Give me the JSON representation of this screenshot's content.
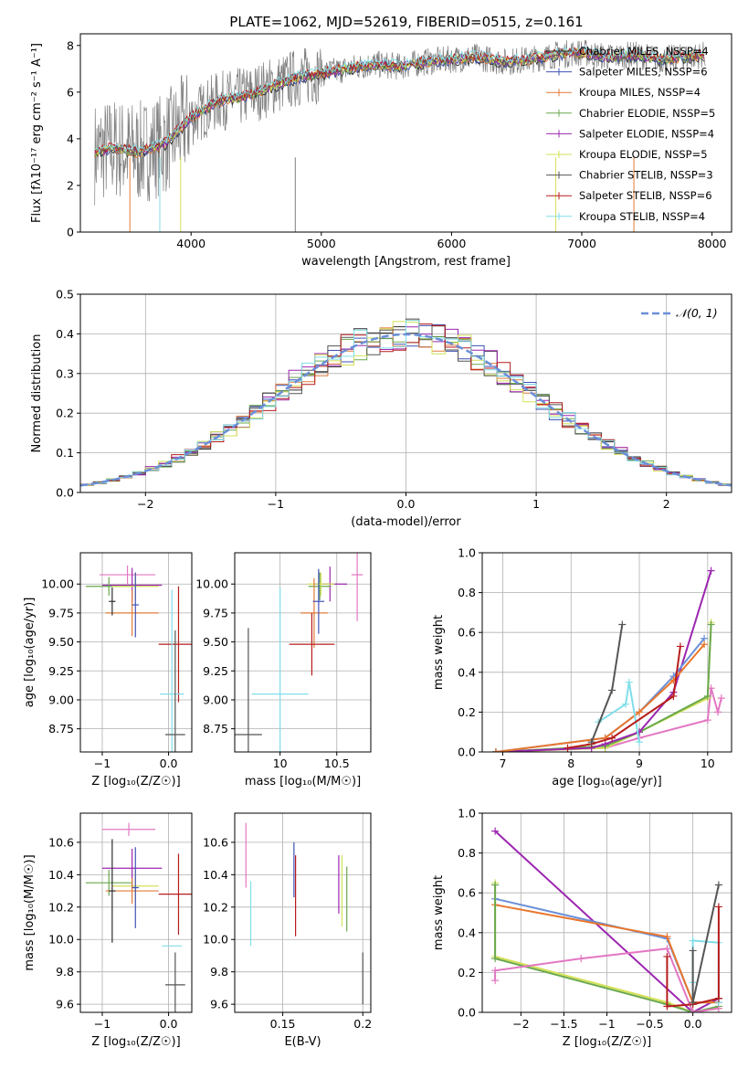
{
  "figure_title": "PLATE=1062, MJD=52619, FIBERID=0515, z=0.161",
  "colors": {
    "c_miles": "#2e2e2e",
    "s_miles": "#3f51b5",
    "k_miles": "#e07b39",
    "c_elodie": "#6aa84f",
    "s_elodie": "#9c27b0",
    "k_elodie": "#d4e157",
    "c_stelib": "#555555",
    "s_stelib": "#b71c1c",
    "k_stelib": "#80deea",
    "pink": "#e377c2",
    "blue": "#6a8fd8",
    "orange": "#e8772e",
    "gray": "#7f7f7f"
  },
  "chart_data": [
    {
      "id": "spectrum",
      "type": "line",
      "xlabel": "wavelength [Angstrom, rest frame]",
      "ylabel": "Flux [fλ10⁻¹⁷ erg cm⁻² s⁻¹ A⁻¹]",
      "xlim": [
        3150,
        8150
      ],
      "ylim": [
        0,
        8.5
      ],
      "xticks": [
        4000,
        5000,
        6000,
        7000,
        8000
      ],
      "yticks": [
        0,
        2,
        4,
        6,
        8
      ],
      "legend_position": "upper-right",
      "series": [
        {
          "name": "Chabrier MILES, NSSP=4",
          "color": "#2e2e2e"
        },
        {
          "name": "Salpeter MILES, NSSP=6",
          "color": "#3f51b5"
        },
        {
          "name": "Kroupa MILES, NSSP=4",
          "color": "#e07b39"
        },
        {
          "name": "Chabrier ELODIE, NSSP=5",
          "color": "#6aa84f"
        },
        {
          "name": "Salpeter ELODIE, NSSP=4",
          "color": "#9c27b0"
        },
        {
          "name": "Kroupa ELODIE, NSSP=5",
          "color": "#d4e157"
        },
        {
          "name": "Chabrier STELIB, NSSP=3",
          "color": "#555555"
        },
        {
          "name": "Salpeter STELIB, NSSP=6",
          "color": "#b71c1c"
        },
        {
          "name": "Kroupa STELIB, NSSP=4",
          "color": "#80deea"
        }
      ],
      "envelope_x": [
        3260,
        3400,
        3600,
        3800,
        4000,
        4200,
        4400,
        4600,
        4800,
        5000,
        5200,
        5400,
        5600,
        5800,
        6000,
        6200,
        6400,
        6600,
        6800,
        7000,
        7200,
        7400,
        7600,
        7800,
        7950
      ],
      "envelope_y": [
        3.4,
        3.6,
        3.4,
        3.8,
        4.9,
        5.6,
        5.8,
        6.2,
        6.6,
        6.8,
        7.0,
        7.2,
        7.1,
        7.3,
        7.4,
        7.5,
        7.3,
        7.4,
        7.6,
        7.7,
        7.5,
        7.6,
        7.4,
        7.5,
        7.6
      ]
    },
    {
      "id": "residuals",
      "type": "histogram",
      "xlabel": "(data-model)/error",
      "ylabel": "Normed distribution",
      "xlim": [
        -2.5,
        2.5
      ],
      "ylim": [
        0,
        0.5
      ],
      "xticks": [
        -2,
        -1,
        0,
        1,
        2
      ],
      "yticks": [
        0.0,
        0.1,
        0.2,
        0.3,
        0.4,
        0.5
      ],
      "legend": [
        "𝒩(0, 1)"
      ],
      "reference_curve": "normal pdf, mean 0, sd 1"
    },
    {
      "id": "z_age",
      "type": "scatter",
      "xlabel": "Z [log₁₀(Z/Z☉)]",
      "ylabel": "age  [log₁₀(age/yr)]",
      "xlim": [
        -1.33,
        0.35
      ],
      "ylim": [
        8.55,
        10.27
      ],
      "xticks": [
        -1,
        0
      ],
      "yticks": [
        8.75,
        9.0,
        9.25,
        9.5,
        9.75,
        10.0
      ],
      "points": [
        {
          "x": -0.62,
          "y": 10.08,
          "xerr": 0.42,
          "yerr": 0.08,
          "color": "#e377c2"
        },
        {
          "x": -0.55,
          "y": 9.99,
          "xerr": 0.45,
          "yerr": 0.15,
          "color": "#9c27b0"
        },
        {
          "x": -0.9,
          "y": 9.98,
          "xerr": 0.35,
          "yerr": 0.08,
          "color": "#6aa84f"
        },
        {
          "x": -0.5,
          "y": 9.98,
          "xerr": 0.35,
          "yerr": 0.12,
          "color": "#d4e157"
        },
        {
          "x": -0.55,
          "y": 9.75,
          "xerr": 0.4,
          "yerr": 0.2,
          "color": "#e07b39"
        },
        {
          "x": -0.85,
          "y": 9.85,
          "xerr": 0.05,
          "yerr": 0.12,
          "color": "#2e2e2e"
        },
        {
          "x": -0.5,
          "y": 9.82,
          "xerr": 0.05,
          "yerr": 0.28,
          "color": "#3f51b5"
        },
        {
          "x": 0.15,
          "y": 9.48,
          "xerr": 0.3,
          "yerr": 0.5,
          "color": "#b71c1c"
        },
        {
          "x": 0.05,
          "y": 9.05,
          "xerr": 0.18,
          "yerr": 0.9,
          "color": "#80deea"
        },
        {
          "x": 0.1,
          "y": 8.7,
          "xerr": 0.15,
          "yerr": 0.9,
          "color": "#555555"
        }
      ]
    },
    {
      "id": "mass_age",
      "type": "scatter",
      "xlabel": "mass [log₁₀(M/M☉)]",
      "ylabel": "",
      "xlim": [
        9.6,
        10.8
      ],
      "ylim": [
        8.55,
        10.27
      ],
      "xticks": [
        10.0,
        10.5
      ],
      "yticks": [
        8.75,
        9.0,
        9.25,
        9.5,
        9.75,
        10.0
      ],
      "points": [
        {
          "x": 10.68,
          "y": 10.08,
          "xerr": 0.05,
          "yerr": 0.4,
          "color": "#e377c2"
        },
        {
          "x": 10.44,
          "y": 10.0,
          "xerr": 0.15,
          "yerr": 0.15,
          "color": "#9c27b0"
        },
        {
          "x": 10.35,
          "y": 9.98,
          "xerr": 0.1,
          "yerr": 0.12,
          "color": "#6aa84f"
        },
        {
          "x": 10.36,
          "y": 10.0,
          "xerr": 0.12,
          "yerr": 0.1,
          "color": "#d4e157"
        },
        {
          "x": 10.3,
          "y": 9.75,
          "xerr": 0.12,
          "yerr": 0.3,
          "color": "#e07b39"
        },
        {
          "x": 10.34,
          "y": 9.85,
          "xerr": 0.05,
          "yerr": 0.28,
          "color": "#3f51b5"
        },
        {
          "x": 10.28,
          "y": 9.48,
          "xerr": 0.2,
          "yerr": 0.27,
          "color": "#b71c1c"
        },
        {
          "x": 10.0,
          "y": 9.05,
          "xerr": 0.25,
          "yerr": 0.92,
          "color": "#80deea"
        },
        {
          "x": 9.72,
          "y": 8.7,
          "xerr": 0.12,
          "yerr": 0.92,
          "color": "#555555"
        }
      ]
    },
    {
      "id": "age_weight",
      "type": "line",
      "xlabel": "age  [log₁₀(age/yr)]",
      "ylabel": "mass weight",
      "xlim": [
        6.7,
        10.35
      ],
      "ylim": [
        0,
        1.0
      ],
      "xticks": [
        7,
        8,
        9,
        10
      ],
      "yticks": [
        0.0,
        0.2,
        0.4,
        0.6,
        0.8,
        1.0
      ],
      "series": [
        {
          "color": "#e377c2",
          "x": [
            6.9,
            8.5,
            9.0,
            10.0,
            10.05,
            10.15,
            10.2
          ],
          "y": [
            0.0,
            0.02,
            0.07,
            0.16,
            0.32,
            0.2,
            0.27
          ]
        },
        {
          "color": "#d4e157",
          "x": [
            6.9,
            8.5,
            9.0,
            10.0,
            10.05
          ],
          "y": [
            0.0,
            0.02,
            0.1,
            0.27,
            0.65
          ]
        },
        {
          "color": "#6aa84f",
          "x": [
            6.9,
            8.5,
            9.0,
            10.0,
            10.05
          ],
          "y": [
            0.0,
            0.03,
            0.1,
            0.28,
            0.64
          ]
        },
        {
          "color": "#9c27b0",
          "x": [
            6.9,
            8.3,
            8.5,
            9.0,
            9.5,
            10.05
          ],
          "y": [
            0.0,
            0.02,
            0.04,
            0.1,
            0.3,
            0.91
          ]
        },
        {
          "color": "#6a8fd8",
          "x": [
            6.9,
            8.5,
            9.0,
            9.5,
            9.95
          ],
          "y": [
            0.0,
            0.07,
            0.2,
            0.38,
            0.57
          ]
        },
        {
          "color": "#e8772e",
          "x": [
            6.9,
            8.5,
            9.0,
            9.5,
            9.95
          ],
          "y": [
            0.0,
            0.07,
            0.2,
            0.36,
            0.54
          ]
        },
        {
          "color": "#80deea",
          "x": [
            8.4,
            8.8,
            8.85,
            9.0
          ],
          "y": [
            0.15,
            0.24,
            0.35,
            0.05
          ]
        },
        {
          "color": "#b71c1c",
          "x": [
            7.95,
            8.3,
            8.6,
            9.5,
            9.6
          ],
          "y": [
            0.02,
            0.04,
            0.07,
            0.28,
            0.53
          ]
        },
        {
          "color": "#555555",
          "x": [
            8.3,
            8.6,
            8.75
          ],
          "y": [
            0.05,
            0.31,
            0.64
          ]
        }
      ]
    },
    {
      "id": "z_mass",
      "type": "scatter",
      "xlabel": "Z [log₁₀(Z/Z☉)]",
      "ylabel": "mass [log₁₀(M/M☉)]",
      "xlim": [
        -1.33,
        0.35
      ],
      "ylim": [
        9.55,
        10.78
      ],
      "xticks": [
        -1,
        0
      ],
      "yticks": [
        9.6,
        9.8,
        10.0,
        10.2,
        10.4,
        10.6
      ],
      "points": [
        {
          "x": -0.6,
          "y": 10.68,
          "xerr": 0.4,
          "yerr": 0.04,
          "color": "#e377c2"
        },
        {
          "x": -0.55,
          "y": 10.44,
          "xerr": 0.45,
          "yerr": 0.12,
          "color": "#9c27b0"
        },
        {
          "x": -0.9,
          "y": 10.35,
          "xerr": 0.35,
          "yerr": 0.08,
          "color": "#6aa84f"
        },
        {
          "x": -0.5,
          "y": 10.33,
          "xerr": 0.35,
          "yerr": 0.1,
          "color": "#d4e157"
        },
        {
          "x": -0.55,
          "y": 10.3,
          "xerr": 0.4,
          "yerr": 0.08,
          "color": "#e07b39"
        },
        {
          "x": -0.85,
          "y": 10.3,
          "xerr": 0.05,
          "yerr": 0.32,
          "color": "#2e2e2e"
        },
        {
          "x": -0.5,
          "y": 10.32,
          "xerr": 0.05,
          "yerr": 0.25,
          "color": "#3f51b5"
        },
        {
          "x": 0.15,
          "y": 10.28,
          "xerr": 0.3,
          "yerr": 0.25,
          "color": "#b71c1c"
        },
        {
          "x": 0.05,
          "y": 9.96,
          "xerr": 0.15,
          "yerr": 0.0,
          "color": "#80deea"
        },
        {
          "x": 0.1,
          "y": 9.72,
          "xerr": 0.15,
          "yerr": 0.2,
          "color": "#555555"
        }
      ]
    },
    {
      "id": "ebv_mass",
      "type": "scatter",
      "xlabel": "E(B-V)",
      "ylabel": "",
      "xlim": [
        0.12,
        0.205
      ],
      "ylim": [
        9.55,
        10.78
      ],
      "xticks": [
        0.15,
        0.2
      ],
      "yticks": [
        9.6,
        9.8,
        10.0,
        10.2,
        10.4,
        10.6
      ],
      "points": [
        {
          "x": 0.127,
          "y": 10.52,
          "xerr": 0,
          "yerr": 0.2,
          "color": "#e377c2"
        },
        {
          "x": 0.13,
          "y": 10.16,
          "xerr": 0,
          "yerr": 0.2,
          "color": "#80deea"
        },
        {
          "x": 0.157,
          "y": 10.43,
          "xerr": 0,
          "yerr": 0.17,
          "color": "#3f51b5"
        },
        {
          "x": 0.158,
          "y": 10.27,
          "xerr": 0,
          "yerr": 0.25,
          "color": "#b71c1c"
        },
        {
          "x": 0.185,
          "y": 10.34,
          "xerr": 0,
          "yerr": 0.18,
          "color": "#9c27b0"
        },
        {
          "x": 0.187,
          "y": 10.3,
          "xerr": 0,
          "yerr": 0.22,
          "color": "#d4e157"
        },
        {
          "x": 0.19,
          "y": 10.25,
          "xerr": 0,
          "yerr": 0.2,
          "color": "#6aa84f"
        },
        {
          "x": 0.2,
          "y": 9.76,
          "xerr": 0,
          "yerr": 0.16,
          "color": "#555555"
        }
      ]
    },
    {
      "id": "z_weight",
      "type": "line",
      "xlabel": "Z [log₁₀(Z/Z☉)]",
      "ylabel": "mass weight",
      "xlim": [
        -2.45,
        0.45
      ],
      "ylim": [
        0,
        1.0
      ],
      "xticks": [
        -2.0,
        -1.5,
        -1.0,
        -0.5,
        0.0
      ],
      "yticks": [
        0.0,
        0.2,
        0.4,
        0.6,
        0.8,
        1.0
      ],
      "series": [
        {
          "color": "#9c27b0",
          "x": [
            -2.3,
            0.0,
            0.3
          ],
          "y": [
            0.91,
            0.0,
            0.07
          ]
        },
        {
          "color": "#6a8fd8",
          "x": [
            -2.3,
            -0.3,
            0.0,
            0.3
          ],
          "y": [
            0.57,
            0.37,
            0.05,
            0.05
          ]
        },
        {
          "color": "#e8772e",
          "x": [
            -2.3,
            -0.3,
            0.0,
            0.3
          ],
          "y": [
            0.54,
            0.38,
            0.05,
            0.05
          ]
        },
        {
          "color": "#d4e157",
          "x": [
            -2.3,
            -2.3,
            -0.3,
            0.0,
            0.3
          ],
          "y": [
            0.65,
            0.28,
            0.05,
            0.0,
            0.02
          ]
        },
        {
          "color": "#6aa84f",
          "x": [
            -2.3,
            -2.3,
            -0.3,
            0.0,
            0.3
          ],
          "y": [
            0.64,
            0.27,
            0.04,
            0.0,
            0.03
          ]
        },
        {
          "color": "#e377c2",
          "x": [
            -2.3,
            -2.3,
            -1.3,
            -0.3,
            0.0,
            0.3
          ],
          "y": [
            0.16,
            0.21,
            0.27,
            0.32,
            0.0,
            0.02
          ]
        },
        {
          "color": "#80deea",
          "x": [
            0.0,
            0.0,
            0.3,
            0.3
          ],
          "y": [
            0.15,
            0.36,
            0.35,
            0.05
          ]
        },
        {
          "color": "#b71c1c",
          "x": [
            -0.3,
            -0.3,
            0.0,
            0.3,
            0.3
          ],
          "y": [
            0.28,
            0.03,
            0.04,
            0.07,
            0.53
          ]
        },
        {
          "color": "#555555",
          "x": [
            0.0,
            0.0,
            0.3
          ],
          "y": [
            0.31,
            0.05,
            0.64
          ]
        }
      ]
    }
  ]
}
